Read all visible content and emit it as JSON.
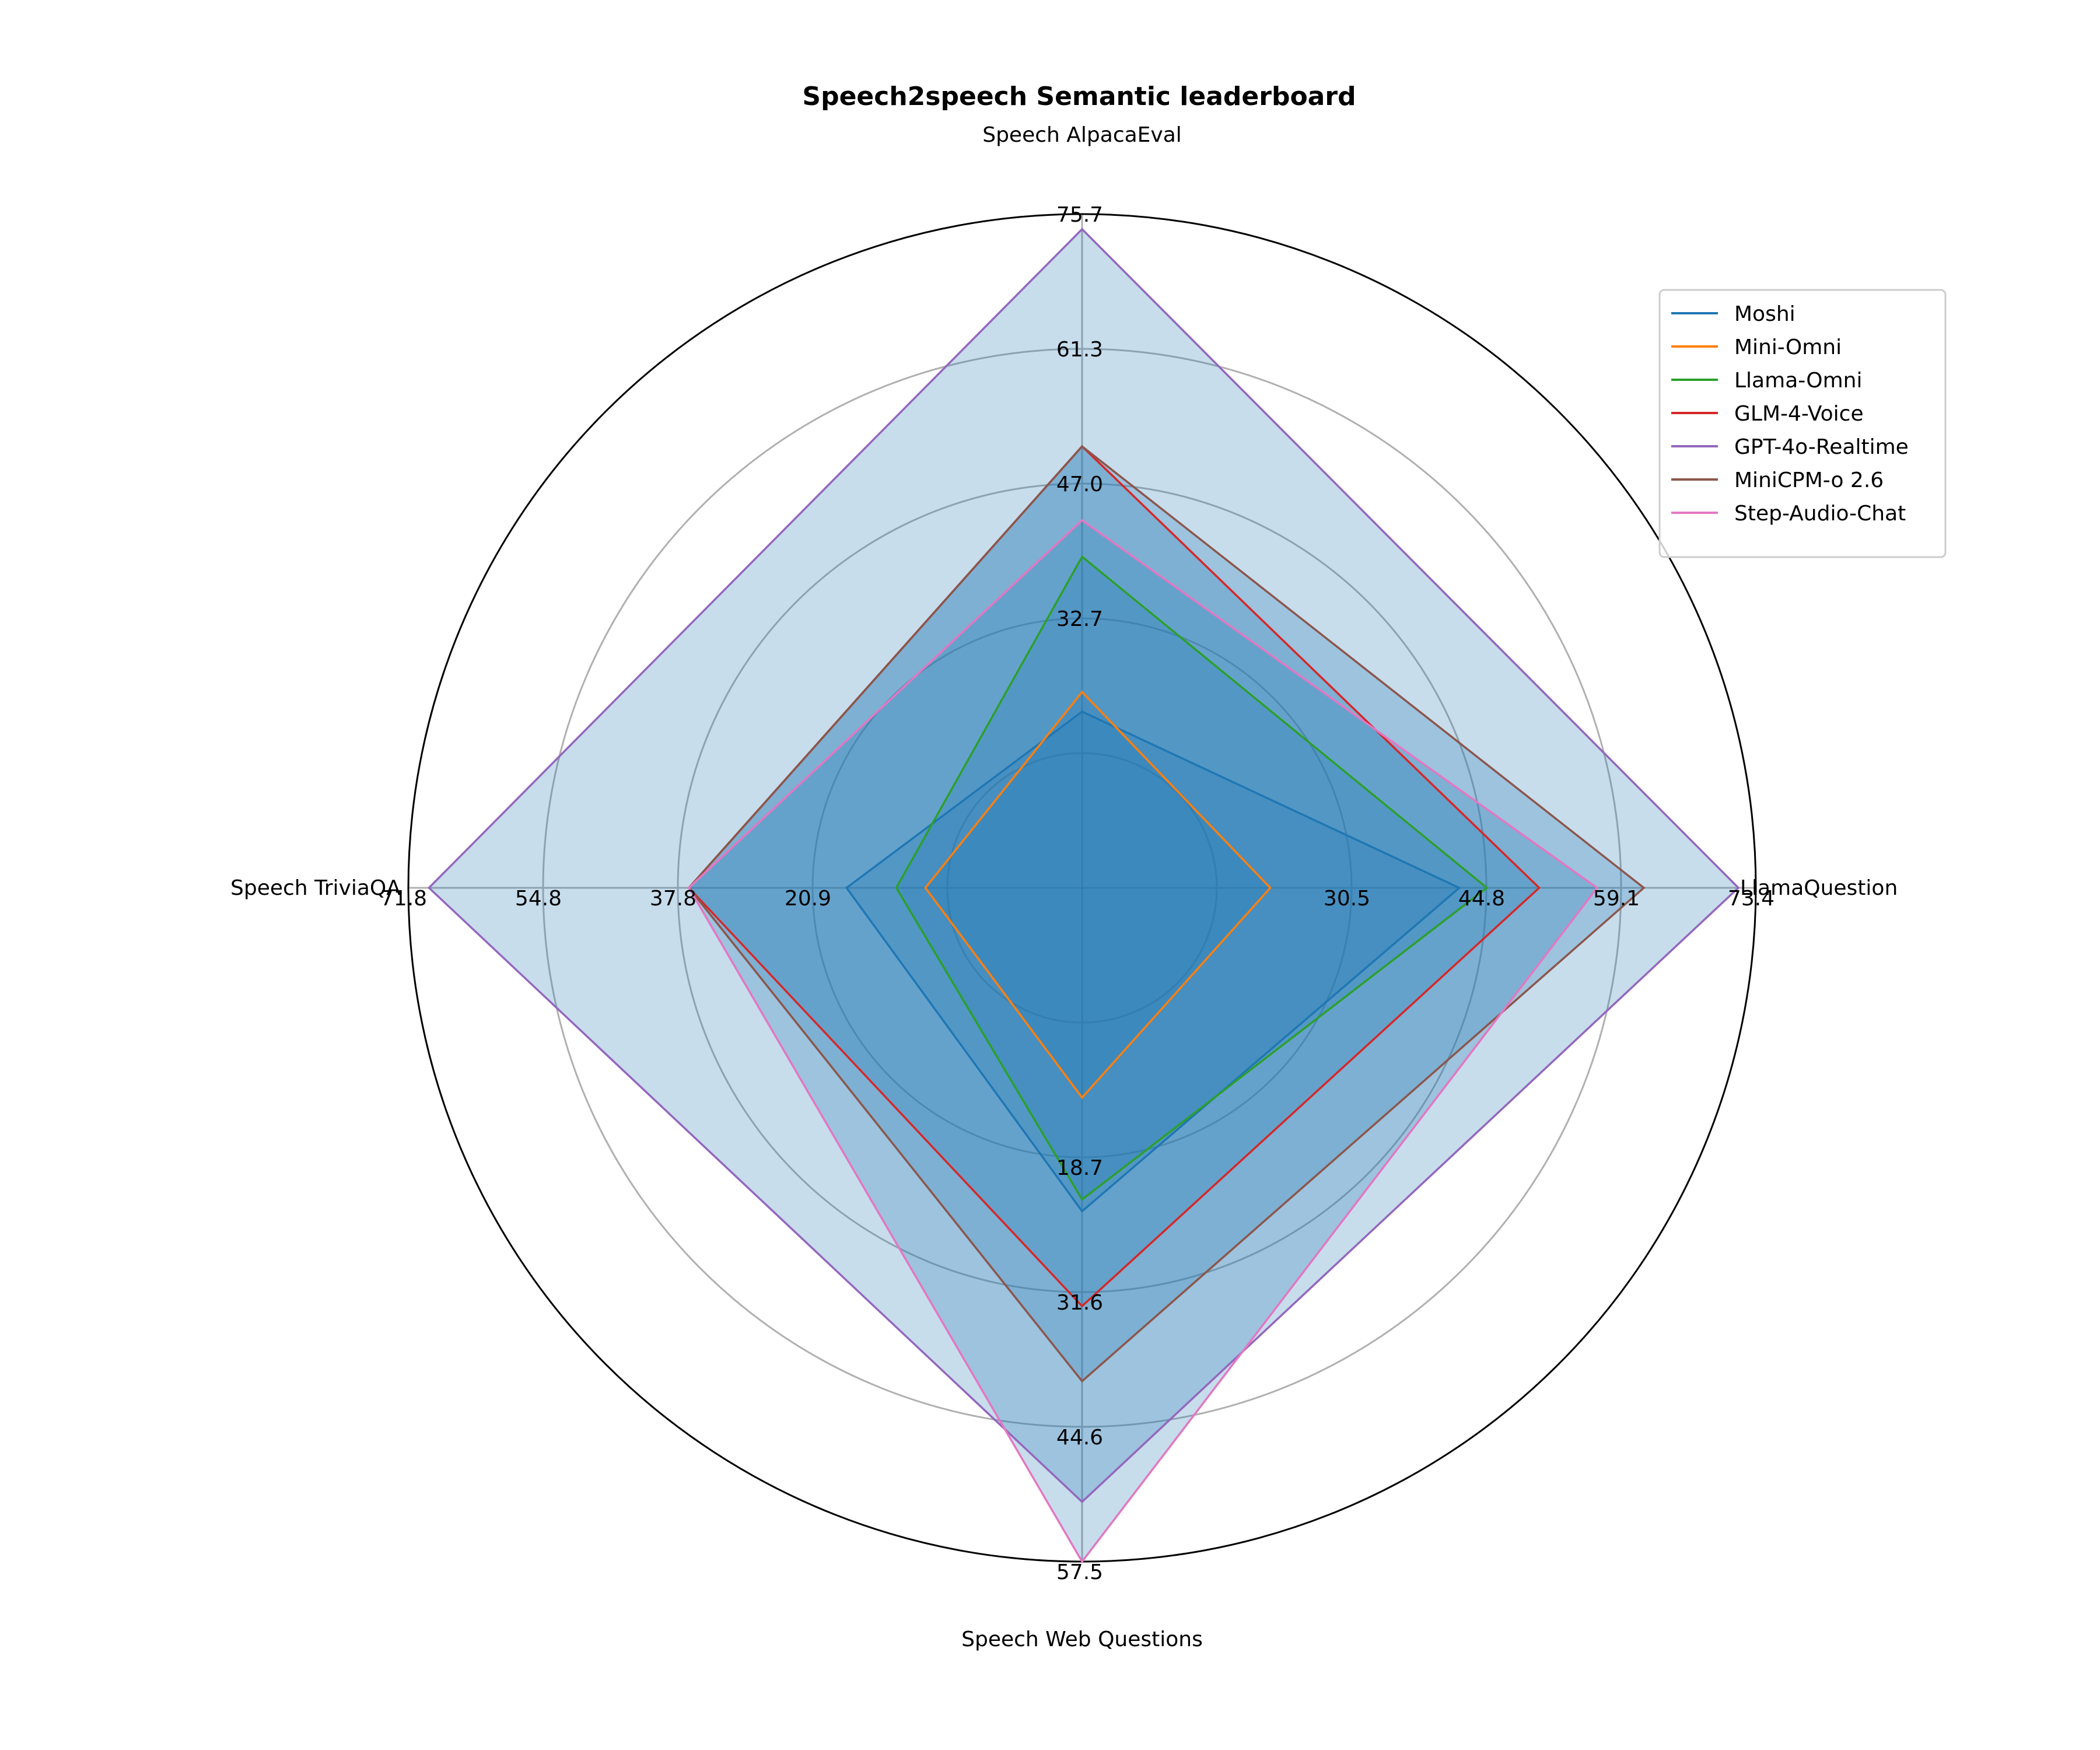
{
  "chart_data": {
    "type": "radar",
    "title": "Speech2speech Semantic leaderboard",
    "axes": [
      {
        "name": "Speech AlpacaEval",
        "ticks": [
          "32.7",
          "47.0",
          "61.3",
          "75.7"
        ],
        "tick_values": [
          32.7,
          47.0,
          61.3,
          75.7
        ],
        "max": 75.7
      },
      {
        "name": "LlamaQuestion",
        "ticks": [
          "30.5",
          "44.8",
          "59.1",
          "73.4"
        ],
        "tick_values": [
          30.5,
          44.8,
          59.1,
          73.4
        ],
        "max": 73.4
      },
      {
        "name": "Speech Web Questions",
        "ticks": [
          "18.7",
          "31.6",
          "44.6",
          "57.5"
        ],
        "tick_values": [
          18.7,
          31.6,
          44.6,
          57.5
        ],
        "max": 57.5
      },
      {
        "name": "Speech TriviaQA",
        "ticks": [
          "20.9",
          "37.8",
          "54.8",
          "71.8"
        ],
        "tick_values": [
          20.9,
          37.8,
          54.8,
          71.8
        ],
        "max": 71.8
      }
    ],
    "series": [
      {
        "name": "Moshi",
        "color": "#1f77b4",
        "values": [
          19.8,
          41.1,
          27.6,
          25.1
        ]
      },
      {
        "name": "Mini-Omni",
        "color": "#ff7f0e",
        "values": [
          22.0,
          20.5,
          17.9,
          16.7
        ]
      },
      {
        "name": "Llama-Omni",
        "color": "#2ca02c",
        "values": [
          37.2,
          44.1,
          26.6,
          19.8
        ]
      },
      {
        "name": "GLM-4-Voice",
        "color": "#d62728",
        "values": [
          49.6,
          49.8,
          35.7,
          41.9
        ]
      },
      {
        "name": "GPT-4o-Realtime",
        "color": "#9467bd",
        "values": [
          74.0,
          71.5,
          52.4,
          69.6
        ]
      },
      {
        "name": "MiniCPM-o 2.6",
        "color": "#8c564b",
        "values": [
          49.6,
          61.2,
          42.1,
          41.9
        ]
      },
      {
        "name": "Step-Audio-Chat",
        "color": "#e377c2",
        "values": [
          41.3,
          56.1,
          57.5,
          41.9
        ]
      }
    ],
    "fill_color": "#1f77b4",
    "grid": true,
    "legend_position": "upper right"
  }
}
